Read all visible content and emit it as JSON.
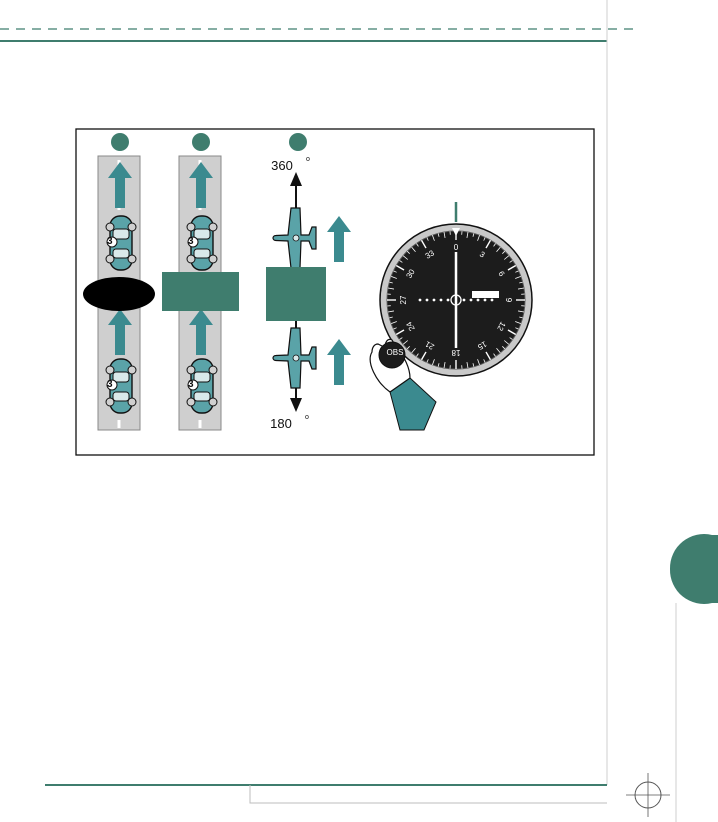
{
  "diagram": {
    "heading_top": "360",
    "heading_bottom": "180",
    "degree_mark": "o",
    "car_number": "3",
    "obs_label": "OBS",
    "compass_ticks": [
      "0",
      "3",
      "6",
      "9",
      "12",
      "15",
      "18",
      "21",
      "24",
      "27",
      "30",
      "33"
    ],
    "colors": {
      "teal": "#3f7d6e",
      "arrow_teal": "#3b8a8f",
      "road_gray": "#cfcfcf",
      "dark": "#111111",
      "plane": "#5aa3a8"
    }
  }
}
